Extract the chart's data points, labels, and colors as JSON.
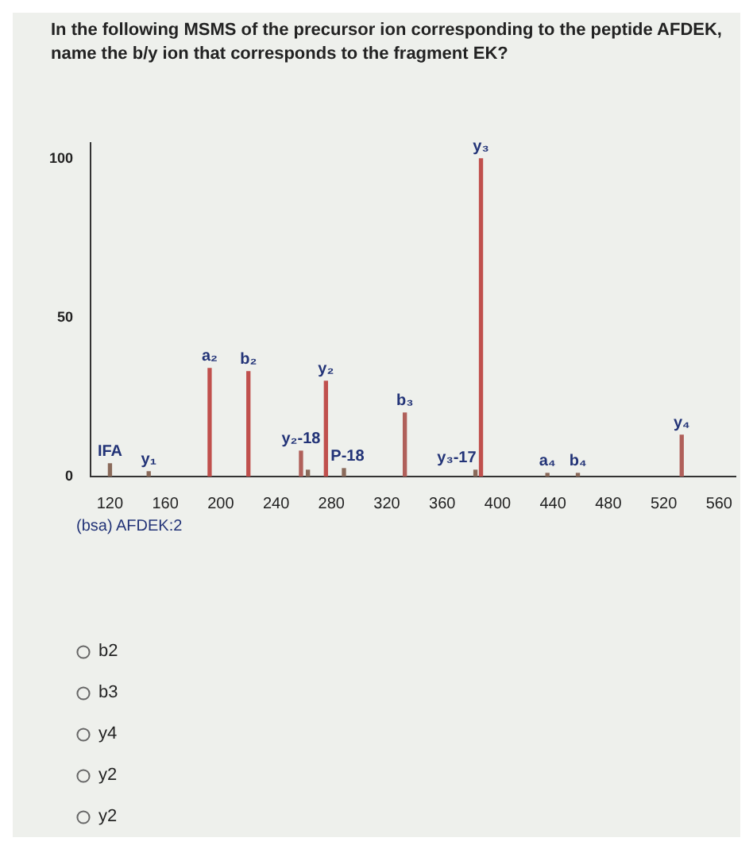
{
  "chart_data": {
    "type": "bar",
    "title": "In the following MSMS of the precursor ion corresponding to the peptide AFDEK, name the b/y ion that corresponds to the fragment EK?",
    "x": [
      120,
      148,
      192,
      220,
      258,
      263,
      276,
      289,
      333,
      384,
      388,
      436,
      458,
      533
    ],
    "values": [
      4,
      1.5,
      34,
      33,
      8,
      2,
      30,
      2.5,
      20,
      2,
      100,
      1,
      1,
      13
    ],
    "colors": [
      "#8a6a5a",
      "#8a6a5a",
      "#c0504d",
      "#c0504d",
      "#b0605a",
      "#8a6a5a",
      "#c0504d",
      "#8a6a5a",
      "#b0605a",
      "#8a6a5a",
      "#c0504d",
      "#8a6a5a",
      "#8a6a5a",
      "#b0605a"
    ],
    "xlim": [
      106,
      572
    ],
    "xticks": [
      120,
      160,
      200,
      240,
      280,
      320,
      360,
      400,
      440,
      480,
      520,
      560
    ],
    "ylim": [
      0,
      105
    ],
    "yticks": [
      0,
      50,
      100
    ],
    "grid": false,
    "legend": false,
    "annotations": [
      {
        "text": "IFA",
        "x": 120,
        "y": 4
      },
      {
        "text": "y₁",
        "x": 148,
        "y": 1.5
      },
      {
        "text": "a₂",
        "x": 192,
        "y": 34
      },
      {
        "text": "b₂",
        "x": 220,
        "y": 33
      },
      {
        "text": "y₂-18",
        "x": 258,
        "y": 8
      },
      {
        "text": "y₂",
        "x": 276,
        "y": 30
      },
      {
        "text": "P-18",
        "x": 289,
        "y": 2.5
      },
      {
        "text": "b₃",
        "x": 333,
        "y": 20
      },
      {
        "text": "y₃-17",
        "x": 384,
        "y": 2
      },
      {
        "text": "y₃",
        "x": 388,
        "y": 100
      },
      {
        "text": "a₄",
        "x": 436,
        "y": 1
      },
      {
        "text": "b₄",
        "x": 458,
        "y": 1
      },
      {
        "text": "y₄",
        "x": 533,
        "y": 13
      },
      "(bsa) AFDEK:2",
      "b2",
      "b3",
      "y4",
      "y2",
      "y2"
    ]
  }
}
